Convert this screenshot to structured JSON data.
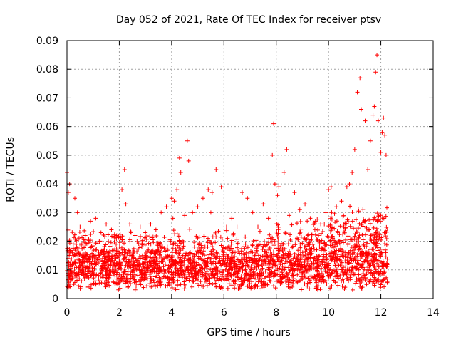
{
  "colors": {
    "series": "#ff0000",
    "axis": "#000000",
    "grid": "#a0a0a0",
    "background": "#ffffff"
  },
  "chart_data": {
    "type": "scatter",
    "title": "Day 052 of 2021, Rate Of TEC Index for receiver ptsv",
    "xlabel": "GPS time / hours",
    "ylabel": "ROTI / TECUs",
    "xlim": [
      0,
      14
    ],
    "ylim": [
      0,
      0.09
    ],
    "x_ticks": [
      0,
      2,
      4,
      6,
      8,
      10,
      12,
      14
    ],
    "y_ticks": [
      0,
      0.01,
      0.02,
      0.03,
      0.04,
      0.05,
      0.06,
      0.07,
      0.08,
      0.09
    ],
    "x_tick_labels": [
      "0",
      "2",
      "4",
      "6",
      "8",
      "10",
      "12",
      "14"
    ],
    "y_tick_labels": [
      "0",
      "0.01",
      "0.02",
      "0.03",
      "0.04",
      "0.05",
      "0.06",
      "0.07",
      "0.08",
      "0.09"
    ],
    "grid": true,
    "marker": "+",
    "series": [
      {
        "name": "ROTI",
        "x": [
          0.0,
          0.05,
          0.05,
          0.1,
          0.15,
          0.2,
          0.3,
          0.4,
          0.5,
          0.7,
          0.9,
          1.1,
          1.3,
          1.5,
          1.7,
          1.9,
          2.1,
          2.2,
          2.25,
          2.4,
          2.6,
          2.8,
          3.0,
          3.2,
          3.4,
          3.6,
          3.8,
          4.0,
          4.05,
          4.1,
          4.2,
          4.3,
          4.35,
          4.5,
          4.6,
          4.65,
          4.8,
          5.0,
          5.2,
          5.4,
          5.5,
          5.55,
          5.7,
          5.9,
          6.1,
          6.3,
          6.5,
          6.7,
          6.9,
          7.1,
          7.3,
          7.5,
          7.7,
          7.85,
          7.9,
          7.95,
          8.05,
          8.1,
          8.3,
          8.4,
          8.5,
          8.7,
          8.9,
          9.1,
          9.3,
          9.5,
          9.7,
          9.9,
          10.0,
          10.1,
          10.3,
          10.5,
          10.7,
          10.8,
          10.9,
          11.0,
          11.1,
          11.2,
          11.25,
          11.4,
          11.5,
          11.6,
          11.7,
          11.75,
          11.8,
          11.85,
          11.9,
          12.0,
          12.05,
          12.1,
          12.15,
          12.2
        ],
        "y": [
          0.044,
          0.037,
          0.008,
          0.04,
          0.018,
          0.012,
          0.035,
          0.03,
          0.025,
          0.022,
          0.027,
          0.028,
          0.023,
          0.026,
          0.024,
          0.022,
          0.038,
          0.045,
          0.033,
          0.026,
          0.022,
          0.025,
          0.023,
          0.026,
          0.024,
          0.03,
          0.032,
          0.035,
          0.028,
          0.034,
          0.038,
          0.049,
          0.044,
          0.029,
          0.055,
          0.048,
          0.03,
          0.032,
          0.035,
          0.038,
          0.03,
          0.037,
          0.045,
          0.039,
          0.025,
          0.028,
          0.025,
          0.037,
          0.035,
          0.03,
          0.025,
          0.033,
          0.028,
          0.05,
          0.061,
          0.04,
          0.036,
          0.039,
          0.044,
          0.052,
          0.029,
          0.037,
          0.031,
          0.033,
          0.028,
          0.027,
          0.026,
          0.03,
          0.038,
          0.039,
          0.032,
          0.034,
          0.039,
          0.04,
          0.044,
          0.052,
          0.072,
          0.077,
          0.066,
          0.062,
          0.045,
          0.055,
          0.064,
          0.067,
          0.079,
          0.085,
          0.062,
          0.051,
          0.058,
          0.063,
          0.057,
          0.05
        ]
      }
    ]
  }
}
